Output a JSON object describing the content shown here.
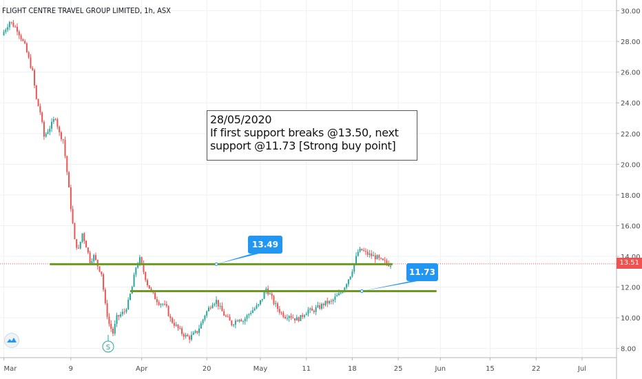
{
  "chart_data": {
    "type": "candlestick",
    "title": "FLIGHT CENTRE TRAVEL GROUP LIMITED, 1h, ASX",
    "y_ticks": [
      "30.00",
      "28.00",
      "26.00",
      "24.00",
      "22.00",
      "20.00",
      "18.00",
      "16.00",
      "14.00",
      "12.00",
      "10.00",
      "8.00"
    ],
    "y_tick_values": [
      30,
      28,
      26,
      24,
      22,
      20,
      18,
      16,
      14,
      12,
      10,
      8
    ],
    "ylim": [
      7.4,
      30.7
    ],
    "x_ticks": [
      "Mar",
      "9",
      "Apr",
      "20",
      "May",
      "11",
      "18",
      "25",
      "Jun",
      "15",
      "22",
      "Jul"
    ],
    "x_tick_times": [
      0,
      17.5,
      36,
      53,
      67,
      79,
      91,
      103,
      114,
      127,
      139,
      151
    ],
    "xlim": [
      -1,
      160
    ],
    "last_price": "13.51",
    "annotation": {
      "lines": [
        "28/05/2020",
        "If first support breaks @13.50, next",
        "support @11.73 [Strong buy point]"
      ]
    },
    "support_lines": [
      {
        "label": "13.49",
        "value": 13.49,
        "t_start": 12,
        "t_end": 101.5
      },
      {
        "label": "11.73",
        "value": 11.73,
        "t_start": 33,
        "t_end": 113
      }
    ],
    "series": [
      {
        "name": "price",
        "ohlc_path": [
          [
            0,
            28.4
          ],
          [
            2,
            29.3
          ],
          [
            4,
            28.8
          ],
          [
            6,
            27.7
          ],
          [
            8,
            26.0
          ],
          [
            9,
            24.2
          ],
          [
            10,
            23.4
          ],
          [
            11,
            21.8
          ],
          [
            13,
            22.6
          ],
          [
            14,
            23.1
          ],
          [
            15,
            22.0
          ],
          [
            16,
            21.6
          ],
          [
            17,
            19.5
          ],
          [
            18,
            17.2
          ],
          [
            19,
            15.0
          ],
          [
            20,
            14.4
          ],
          [
            21,
            15.5
          ],
          [
            22,
            14.7
          ],
          [
            23,
            13.7
          ],
          [
            24,
            14.0
          ],
          [
            25,
            13.4
          ],
          [
            26,
            12.9
          ],
          [
            27,
            10.8
          ],
          [
            28,
            9.6
          ],
          [
            29,
            9.0
          ],
          [
            30,
            10.0
          ],
          [
            31,
            10.2
          ],
          [
            32,
            10.4
          ],
          [
            33,
            11.0
          ],
          [
            34,
            12.0
          ],
          [
            35,
            13.3
          ],
          [
            36,
            13.8
          ],
          [
            37,
            13.0
          ],
          [
            38,
            12.2
          ],
          [
            39,
            11.7
          ],
          [
            40,
            11.3
          ],
          [
            41,
            11.0
          ],
          [
            42,
            10.9
          ],
          [
            43,
            10.6
          ],
          [
            44,
            9.9
          ],
          [
            45,
            9.6
          ],
          [
            46,
            9.3
          ],
          [
            47,
            9.0
          ],
          [
            48,
            8.8
          ],
          [
            49,
            8.7
          ],
          [
            50,
            8.9
          ],
          [
            51,
            9.1
          ],
          [
            52,
            9.6
          ],
          [
            53,
            10.2
          ],
          [
            54,
            10.6
          ],
          [
            55,
            11.0
          ],
          [
            56,
            11.1
          ],
          [
            57,
            10.6
          ],
          [
            58,
            10.2
          ],
          [
            59,
            9.9
          ],
          [
            60,
            9.6
          ],
          [
            61,
            9.8
          ],
          [
            62,
            10.0
          ],
          [
            63,
            9.8
          ],
          [
            64,
            10.1
          ],
          [
            65,
            10.4
          ],
          [
            66,
            10.6
          ],
          [
            67,
            10.8
          ],
          [
            68,
            11.3
          ],
          [
            69,
            11.9
          ],
          [
            70,
            11.5
          ],
          [
            71,
            11.0
          ],
          [
            72,
            10.6
          ],
          [
            73,
            10.3
          ],
          [
            74,
            10.1
          ],
          [
            75,
            10.2
          ],
          [
            76,
            10.0
          ],
          [
            77,
            9.9
          ],
          [
            78,
            10.0
          ],
          [
            79,
            10.3
          ],
          [
            80,
            10.5
          ],
          [
            81,
            10.4
          ],
          [
            82,
            10.6
          ],
          [
            83,
            10.7
          ],
          [
            84,
            10.9
          ],
          [
            85,
            11.0
          ],
          [
            86,
            11.0
          ],
          [
            87,
            11.3
          ],
          [
            88,
            11.5
          ],
          [
            89,
            11.8
          ],
          [
            90,
            12.3
          ],
          [
            91,
            12.8
          ],
          [
            92,
            13.5
          ],
          [
            93,
            14.3
          ],
          [
            94,
            14.4
          ],
          [
            95,
            14.2
          ],
          [
            96,
            14.1
          ],
          [
            97,
            14.0
          ],
          [
            98,
            13.9
          ],
          [
            99,
            13.7
          ],
          [
            100,
            13.6
          ],
          [
            101,
            13.5
          ]
        ]
      }
    ],
    "colors": {
      "up": "#26a69a",
      "down": "#ef5350",
      "support": "#6a9a1f",
      "callout": "#2196f3"
    },
    "grid": true
  },
  "header": {
    "title": "FLIGHT CENTRE TRAVEL GROUP LIMITED, 1h, ASX"
  },
  "markers": {
    "split_label": "S"
  }
}
